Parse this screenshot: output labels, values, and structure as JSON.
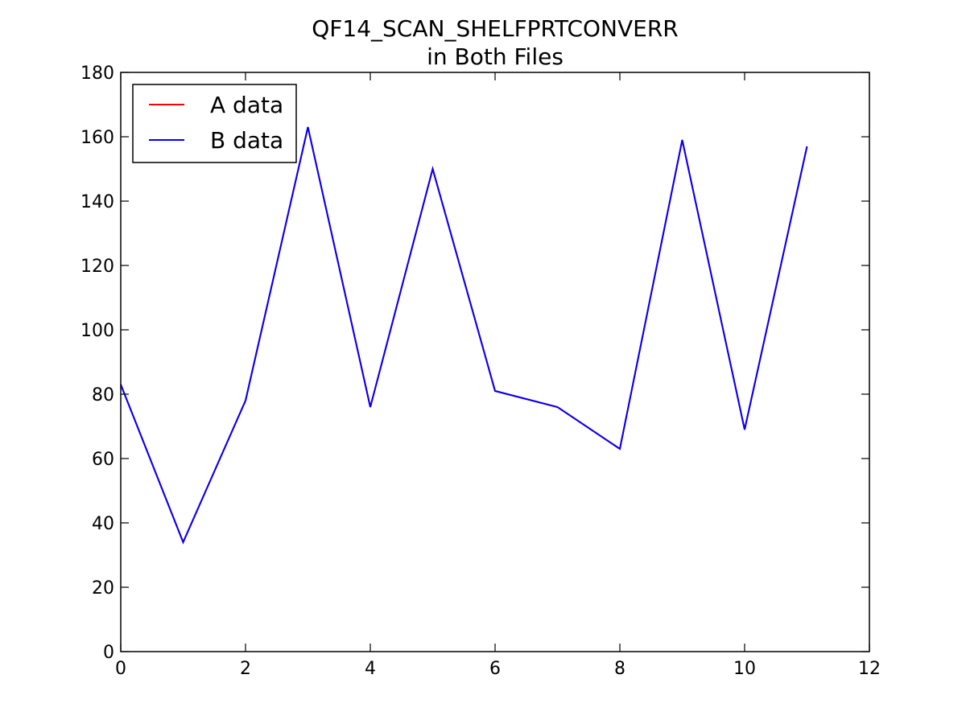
{
  "chart_data": {
    "type": "line",
    "title_line1": "QF14_SCAN_SHELFPRTCONVERR",
    "title_line2": "in Both Files",
    "xlabel": "",
    "ylabel": "",
    "xlim": [
      0,
      12
    ],
    "ylim": [
      0,
      180
    ],
    "xticks": [
      0,
      2,
      4,
      6,
      8,
      10,
      12
    ],
    "yticks": [
      0,
      20,
      40,
      60,
      80,
      100,
      120,
      140,
      160,
      180
    ],
    "grid": false,
    "legend_position": "top-left",
    "series": [
      {
        "name": "A data",
        "color": "#ff0000",
        "x": [
          0,
          1,
          2,
          3,
          4,
          5,
          6,
          7,
          8,
          9,
          10,
          11
        ],
        "y": [
          83,
          34,
          78,
          163,
          76,
          150,
          81,
          76,
          63,
          159,
          69,
          157
        ]
      },
      {
        "name": "B data",
        "color": "#0000ff",
        "x": [
          0,
          1,
          2,
          3,
          4,
          5,
          6,
          7,
          8,
          9,
          10,
          11
        ],
        "y": [
          83,
          34,
          78,
          163,
          76,
          150,
          81,
          76,
          63,
          159,
          69,
          157
        ]
      }
    ]
  }
}
